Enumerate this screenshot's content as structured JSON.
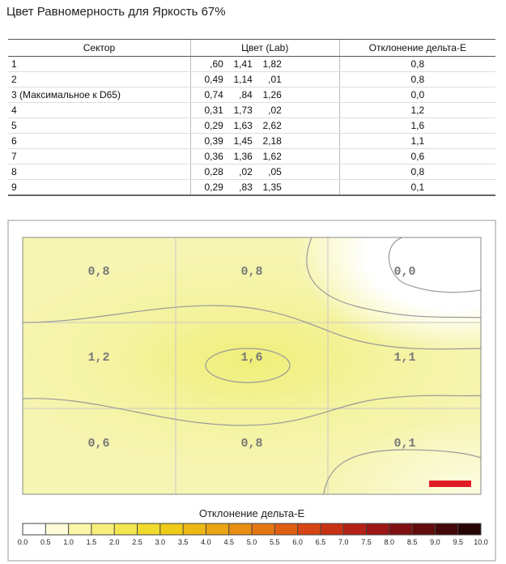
{
  "header": {
    "title": "Цвет Равномерность для Яркость 67%"
  },
  "table": {
    "columns": [
      "Сектор",
      "Цвет (Lab)",
      "Отклонение дельта-E"
    ],
    "rows": [
      [
        "1",
        [
          ",60",
          "1,41",
          "1,82"
        ],
        "0,8"
      ],
      [
        "2",
        [
          "0,49",
          "1,14",
          ",01"
        ],
        "0,8"
      ],
      [
        "3 (Максимальное к D65)",
        [
          "0,74",
          ",84",
          "1,26"
        ],
        "0,0"
      ],
      [
        "4",
        [
          "0,31",
          "1,73",
          ",02"
        ],
        "1,2"
      ],
      [
        "5",
        [
          "0,29",
          "1,63",
          "2,62"
        ],
        "1,6"
      ],
      [
        "6",
        [
          "0,39",
          "1,45",
          "2,18"
        ],
        "1,1"
      ],
      [
        "7",
        [
          "0,36",
          "1,36",
          "1,62"
        ],
        "0,6"
      ],
      [
        "8",
        [
          "0,28",
          ",02",
          ",05"
        ],
        "0,8"
      ],
      [
        "9",
        [
          "0,29",
          ",83",
          "1,35"
        ],
        "0,1"
      ]
    ]
  },
  "heatmap": {
    "cells": [
      [
        "0,8",
        "0,8",
        "0,0"
      ],
      [
        "1,2",
        "1,6",
        "1,1"
      ],
      [
        "0,6",
        "0,8",
        "0,1"
      ]
    ],
    "colorbar_title": "Отклонение дельта-E",
    "colorbar_ticks": [
      "0.0",
      "0.5",
      "1.0",
      "1.5",
      "2.0",
      "2.5",
      "3.0",
      "3.5",
      "4.0",
      "4.5",
      "5.0",
      "5.5",
      "6.0",
      "6.5",
      "7.0",
      "7.5",
      "8.0",
      "8.5",
      "9.0",
      "9.5",
      "10.0"
    ]
  }
}
